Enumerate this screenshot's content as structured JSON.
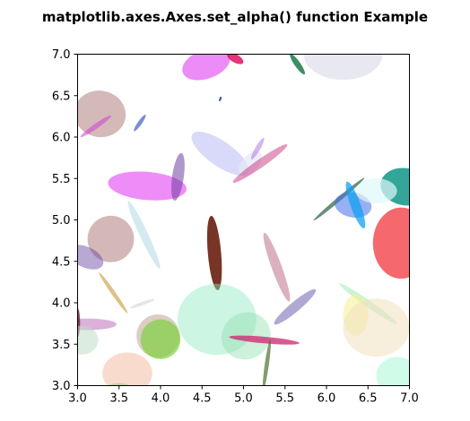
{
  "chart_data": {
    "type": "scatter",
    "title": "matplotlib.axes.Axes.set_alpha() function Example",
    "xlabel": "",
    "ylabel": "",
    "xlim": [
      3.0,
      7.0
    ],
    "ylim": [
      3.0,
      7.0
    ],
    "grid": false,
    "legend": "none",
    "xticks": [
      "3.0",
      "3.5",
      "4.0",
      "4.5",
      "5.0",
      "5.5",
      "6.0",
      "6.5",
      "7.0"
    ],
    "yticks": [
      "3.0",
      "3.5",
      "4.0",
      "4.5",
      "5.0",
      "5.5",
      "6.0",
      "6.5",
      "7.0"
    ],
    "xtick_values": [
      3.0,
      3.5,
      4.0,
      4.5,
      5.0,
      5.5,
      6.0,
      6.5,
      7.0
    ],
    "ytick_values": [
      3.0,
      3.5,
      4.0,
      4.5,
      5.0,
      5.5,
      6.0,
      6.5,
      7.0
    ],
    "ellipses": [
      {
        "x": 6.2,
        "y": 7.0,
        "w": 0.95,
        "h": 0.62,
        "angle": 0,
        "color": "#d8d8e8",
        "alpha": 0.6
      },
      {
        "x": 4.55,
        "y": 6.88,
        "w": 0.6,
        "h": 0.35,
        "angle": 20,
        "color": "#e040f0",
        "alpha": 0.6
      },
      {
        "x": 4.9,
        "y": 6.95,
        "w": 0.22,
        "h": 0.1,
        "angle": -30,
        "color": "#e01060",
        "alpha": 0.85
      },
      {
        "x": 5.65,
        "y": 6.88,
        "w": 0.3,
        "h": 0.07,
        "angle": -55,
        "color": "#107040",
        "alpha": 0.8
      },
      {
        "x": 4.72,
        "y": 6.46,
        "w": 0.06,
        "h": 0.025,
        "angle": 70,
        "color": "#2040a0",
        "alpha": 0.9
      },
      {
        "x": 3.27,
        "y": 6.28,
        "w": 0.62,
        "h": 0.56,
        "angle": -10,
        "color": "#b08080",
        "alpha": 0.55
      },
      {
        "x": 3.22,
        "y": 6.13,
        "w": 0.45,
        "h": 0.06,
        "angle": 35,
        "color": "#d040d0",
        "alpha": 0.55
      },
      {
        "x": 3.75,
        "y": 6.17,
        "w": 0.24,
        "h": 0.05,
        "angle": 55,
        "color": "#4060c0",
        "alpha": 0.7
      },
      {
        "x": 4.72,
        "y": 5.8,
        "w": 0.82,
        "h": 0.3,
        "angle": -35,
        "color": "#9fa0f0",
        "alpha": 0.4
      },
      {
        "x": 5.08,
        "y": 5.68,
        "w": 0.36,
        "h": 0.2,
        "angle": 50,
        "color": "#e8e8f8",
        "alpha": 0.7
      },
      {
        "x": 5.17,
        "y": 5.86,
        "w": 0.3,
        "h": 0.06,
        "angle": 60,
        "color": "#a060e0",
        "alpha": 0.45
      },
      {
        "x": 5.2,
        "y": 5.68,
        "w": 0.8,
        "h": 0.1,
        "angle": 35,
        "color": "#c02070",
        "alpha": 0.45
      },
      {
        "x": 3.84,
        "y": 5.41,
        "w": 0.95,
        "h": 0.34,
        "angle": -5,
        "color": "#e030f0",
        "alpha": 0.55
      },
      {
        "x": 4.21,
        "y": 5.52,
        "w": 0.14,
        "h": 0.58,
        "angle": -8,
        "color": "#7040a0",
        "alpha": 0.55
      },
      {
        "x": 6.95,
        "y": 5.4,
        "w": 0.6,
        "h": 0.45,
        "angle": -10,
        "color": "#009080",
        "alpha": 0.8
      },
      {
        "x": 6.15,
        "y": 5.25,
        "w": 0.05,
        "h": 0.8,
        "angle": -50,
        "color": "#2a6040",
        "alpha": 0.7
      },
      {
        "x": 6.32,
        "y": 5.18,
        "w": 0.45,
        "h": 0.3,
        "angle": -10,
        "color": "#4070e8",
        "alpha": 0.55
      },
      {
        "x": 6.35,
        "y": 5.18,
        "w": 0.12,
        "h": 0.6,
        "angle": 20,
        "color": "#10a0f0",
        "alpha": 0.75
      },
      {
        "x": 6.6,
        "y": 5.35,
        "w": 0.5,
        "h": 0.3,
        "angle": 0,
        "color": "#e0f8f8",
        "alpha": 0.7
      },
      {
        "x": 3.8,
        "y": 4.82,
        "w": 0.1,
        "h": 0.9,
        "angle": 25,
        "color": "#a0d0e0",
        "alpha": 0.45
      },
      {
        "x": 3.4,
        "y": 4.77,
        "w": 0.56,
        "h": 0.56,
        "angle": 0,
        "color": "#a06060",
        "alpha": 0.45
      },
      {
        "x": 3.1,
        "y": 4.55,
        "w": 0.45,
        "h": 0.25,
        "angle": -25,
        "color": "#6040a0",
        "alpha": 0.45
      },
      {
        "x": 4.65,
        "y": 4.6,
        "w": 0.16,
        "h": 0.9,
        "angle": 5,
        "color": "#601000",
        "alpha": 0.85
      },
      {
        "x": 6.9,
        "y": 4.72,
        "w": 0.68,
        "h": 0.86,
        "angle": 0,
        "color": "#f01820",
        "alpha": 0.65
      },
      {
        "x": 5.4,
        "y": 4.43,
        "w": 0.12,
        "h": 0.88,
        "angle": 20,
        "color": "#b05070",
        "alpha": 0.45
      },
      {
        "x": 3.43,
        "y": 4.12,
        "w": 0.05,
        "h": 0.6,
        "angle": 35,
        "color": "#c09020",
        "alpha": 0.55
      },
      {
        "x": 3.78,
        "y": 3.99,
        "w": 0.32,
        "h": 0.04,
        "angle": 20,
        "color": "#d8d0d8",
        "alpha": 0.6
      },
      {
        "x": 4.68,
        "y": 3.8,
        "w": 0.95,
        "h": 0.86,
        "angle": 0,
        "color": "#90e8c0",
        "alpha": 0.45
      },
      {
        "x": 5.03,
        "y": 3.6,
        "w": 0.6,
        "h": 0.56,
        "angle": 30,
        "color": "#90e0b0",
        "alpha": 0.45
      },
      {
        "x": 5.62,
        "y": 3.95,
        "w": 0.12,
        "h": 0.65,
        "angle": -50,
        "color": "#5040a0",
        "alpha": 0.45
      },
      {
        "x": 6.5,
        "y": 3.99,
        "w": 0.08,
        "h": 0.85,
        "angle": 55,
        "color": "#70e090",
        "alpha": 0.35
      },
      {
        "x": 6.35,
        "y": 3.85,
        "w": 0.3,
        "h": 0.5,
        "angle": 0,
        "color": "#f8f090",
        "alpha": 0.55
      },
      {
        "x": 6.6,
        "y": 3.7,
        "w": 0.8,
        "h": 0.7,
        "angle": 0,
        "color": "#f0e0c0",
        "alpha": 0.55
      },
      {
        "x": 3.12,
        "y": 3.74,
        "w": 0.7,
        "h": 0.14,
        "angle": 0,
        "color": "#b050b0",
        "alpha": 0.45
      },
      {
        "x": 3.0,
        "y": 3.76,
        "w": 0.06,
        "h": 0.35,
        "angle": 0,
        "color": "#600030",
        "alpha": 0.7
      },
      {
        "x": 3.05,
        "y": 3.55,
        "w": 0.4,
        "h": 0.35,
        "angle": 0,
        "color": "#c0dcc8",
        "alpha": 0.55
      },
      {
        "x": 3.97,
        "y": 3.6,
        "w": 0.52,
        "h": 0.52,
        "angle": 0,
        "color": "#b09080",
        "alpha": 0.45
      },
      {
        "x": 4.0,
        "y": 3.56,
        "w": 0.48,
        "h": 0.48,
        "angle": 0,
        "color": "#80d040",
        "alpha": 0.7
      },
      {
        "x": 5.25,
        "y": 3.55,
        "w": 0.85,
        "h": 0.08,
        "angle": -5,
        "color": "#d02070",
        "alpha": 0.75
      },
      {
        "x": 5.28,
        "y": 3.25,
        "w": 0.05,
        "h": 0.62,
        "angle": -8,
        "color": "#507030",
        "alpha": 0.7
      },
      {
        "x": 3.6,
        "y": 3.15,
        "w": 0.6,
        "h": 0.5,
        "angle": 0,
        "color": "#f0b090",
        "alpha": 0.45
      },
      {
        "x": 3.5,
        "y": 2.98,
        "w": 0.28,
        "h": 0.1,
        "angle": 0,
        "color": "#a0d090",
        "alpha": 0.6
      },
      {
        "x": 6.85,
        "y": 3.12,
        "w": 0.5,
        "h": 0.45,
        "angle": 0,
        "color": "#b0f8d8",
        "alpha": 0.6
      }
    ]
  }
}
